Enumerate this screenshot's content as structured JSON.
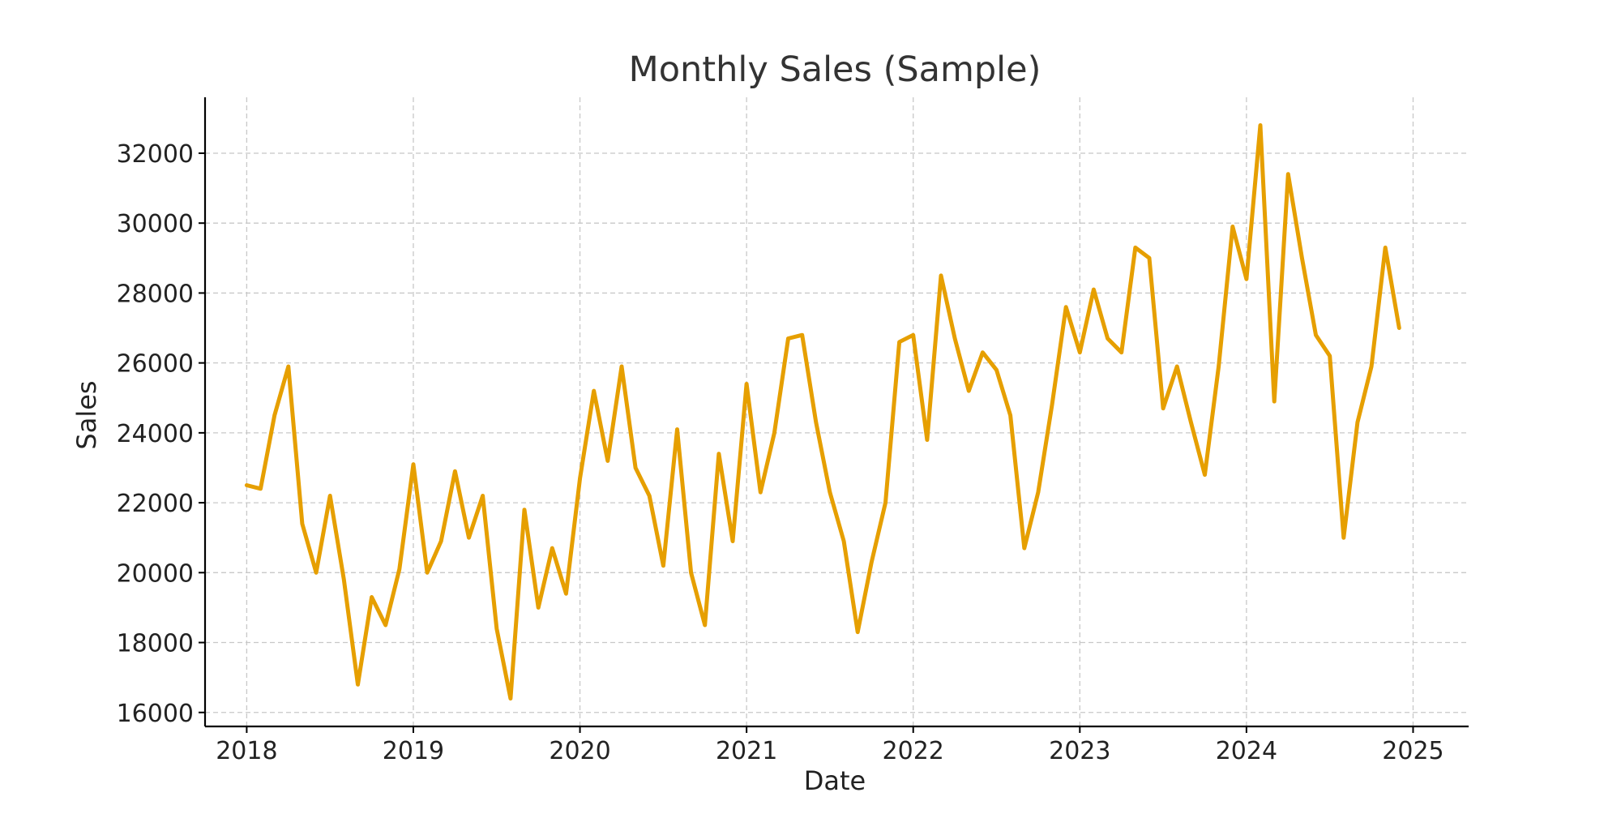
{
  "chart_data": {
    "type": "line",
    "title": "Monthly Sales (Sample)",
    "xlabel": "Date",
    "ylabel": "Sales",
    "x_tick_labels": [
      "2018",
      "2019",
      "2020",
      "2021",
      "2022",
      "2023",
      "2024",
      "2025"
    ],
    "y_tick_labels": [
      "16000",
      "18000",
      "20000",
      "22000",
      "24000",
      "26000",
      "28000",
      "30000",
      "32000"
    ],
    "y_ticks": [
      16000,
      18000,
      20000,
      22000,
      24000,
      26000,
      28000,
      30000,
      32000
    ],
    "ylim": [
      15600,
      33600
    ],
    "xlim": [
      "2017-10",
      "2025-05"
    ],
    "grid": true,
    "line_color": "#E69F00",
    "series": [
      {
        "x": [
          "2018-01",
          "2018-02",
          "2018-03",
          "2018-04",
          "2018-05",
          "2018-06",
          "2018-07",
          "2018-08",
          "2018-09",
          "2018-10",
          "2018-11",
          "2018-12",
          "2019-01",
          "2019-02",
          "2019-03",
          "2019-04",
          "2019-05",
          "2019-06",
          "2019-07",
          "2019-08",
          "2019-09",
          "2019-10",
          "2019-11",
          "2019-12",
          "2020-01",
          "2020-02",
          "2020-03",
          "2020-04",
          "2020-05",
          "2020-06",
          "2020-07",
          "2020-08",
          "2020-09",
          "2020-10",
          "2020-11",
          "2020-12",
          "2021-01",
          "2021-02",
          "2021-03",
          "2021-04",
          "2021-05",
          "2021-06",
          "2021-07",
          "2021-08",
          "2021-09",
          "2021-10",
          "2021-11",
          "2021-12",
          "2022-01",
          "2022-02",
          "2022-03",
          "2022-04",
          "2022-05",
          "2022-06",
          "2022-07",
          "2022-08",
          "2022-09",
          "2022-10",
          "2022-11",
          "2022-12",
          "2023-01",
          "2023-02",
          "2023-03",
          "2023-04",
          "2023-05",
          "2023-06",
          "2023-07",
          "2023-08",
          "2023-09",
          "2023-10",
          "2023-11",
          "2023-12",
          "2024-01",
          "2024-02",
          "2024-03",
          "2024-04",
          "2024-05",
          "2024-06",
          "2024-07",
          "2024-08",
          "2024-09",
          "2024-10",
          "2024-11",
          "2024-12"
        ],
        "values": [
          22500,
          22400,
          24500,
          25900,
          21400,
          20000,
          22200,
          19800,
          16800,
          19300,
          18500,
          20100,
          23100,
          20000,
          20900,
          22900,
          21000,
          22200,
          18400,
          16400,
          21800,
          19000,
          20700,
          19400,
          22700,
          25200,
          23200,
          25900,
          23000,
          22200,
          20200,
          24100,
          20000,
          18500,
          23400,
          20900,
          25400,
          22300,
          24000,
          26700,
          26800,
          24300,
          22300,
          20900,
          18300,
          20300,
          22000,
          26600,
          26800,
          23800,
          28500,
          26700,
          25200,
          26300,
          25800,
          24500,
          20700,
          22300,
          24800,
          27600,
          26300,
          28100,
          26700,
          26300,
          29300,
          29000,
          24700,
          25900,
          24300,
          22800,
          25900,
          29900,
          28400,
          32800,
          24900,
          31400,
          29000,
          26800,
          26200,
          21000,
          24300,
          25900,
          29300,
          27000
        ]
      }
    ]
  }
}
